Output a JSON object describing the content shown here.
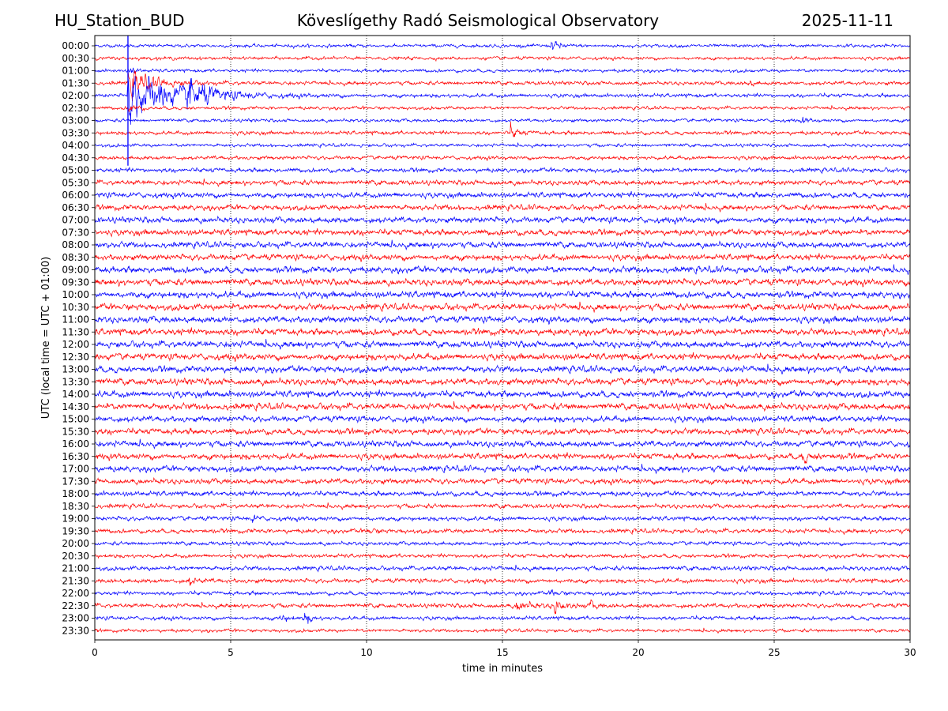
{
  "chart_data": {
    "type": "line",
    "station": "HU_Station_BUD",
    "title": "Köveslígethy Radó Seismological Observatory",
    "date": "2025-11-11",
    "xlabel": "time in minutes",
    "ylabel": "UTC (local time = UTC + 01:00)",
    "xlim": [
      0,
      30
    ],
    "x_ticks": [
      0,
      5,
      10,
      15,
      20,
      25,
      30
    ],
    "grid": "vertical dotted",
    "trace_colors": [
      "#0000ff",
      "#ff0000"
    ],
    "rows": [
      {
        "label": "00:00",
        "noise": 0.3,
        "events": [
          {
            "t": 16.8,
            "amp": 1.0,
            "dur": 0.6
          }
        ]
      },
      {
        "label": "00:30",
        "noise": 0.3,
        "events": []
      },
      {
        "label": "01:00",
        "noise": 0.3,
        "events": [
          {
            "t": 1.3,
            "amp": 1.2,
            "dur": 0.3
          }
        ]
      },
      {
        "label": "01:30",
        "noise": 0.35,
        "events": [
          {
            "t": 1.2,
            "amp": 2.5,
            "dur": 1.8
          },
          {
            "t": 24.0,
            "amp": 0.8,
            "dur": 0.4
          }
        ]
      },
      {
        "label": "02:00",
        "noise": 0.35,
        "events": [
          {
            "t": 1.2,
            "amp": 5.0,
            "dur": 3.5
          },
          {
            "t": 3.4,
            "amp": 3.0,
            "dur": 1.2
          }
        ]
      },
      {
        "label": "02:30",
        "noise": 0.3,
        "events": [
          {
            "t": 1.2,
            "amp": 1.2,
            "dur": 0.5
          }
        ]
      },
      {
        "label": "03:00",
        "noise": 0.3,
        "events": [
          {
            "t": 26.0,
            "amp": 0.7,
            "dur": 0.4
          }
        ]
      },
      {
        "label": "03:30",
        "noise": 0.35,
        "events": [
          {
            "t": 15.3,
            "amp": 1.3,
            "dur": 0.5
          }
        ]
      },
      {
        "label": "04:00",
        "noise": 0.3,
        "events": []
      },
      {
        "label": "04:30",
        "noise": 0.35,
        "events": []
      },
      {
        "label": "05:00",
        "noise": 0.4,
        "events": []
      },
      {
        "label": "05:30",
        "noise": 0.45,
        "events": []
      },
      {
        "label": "06:00",
        "noise": 0.5,
        "events": []
      },
      {
        "label": "06:30",
        "noise": 0.5,
        "events": []
      },
      {
        "label": "07:00",
        "noise": 0.55,
        "events": []
      },
      {
        "label": "07:30",
        "noise": 0.55,
        "events": []
      },
      {
        "label": "08:00",
        "noise": 0.55,
        "events": []
      },
      {
        "label": "08:30",
        "noise": 0.55,
        "events": []
      },
      {
        "label": "09:00",
        "noise": 0.6,
        "events": []
      },
      {
        "label": "09:30",
        "noise": 0.6,
        "events": []
      },
      {
        "label": "10:00",
        "noise": 0.6,
        "events": []
      },
      {
        "label": "10:30",
        "noise": 0.6,
        "events": []
      },
      {
        "label": "11:00",
        "noise": 0.6,
        "events": []
      },
      {
        "label": "11:30",
        "noise": 0.6,
        "events": []
      },
      {
        "label": "12:00",
        "noise": 0.6,
        "events": []
      },
      {
        "label": "12:30",
        "noise": 0.6,
        "events": []
      },
      {
        "label": "13:00",
        "noise": 0.6,
        "events": []
      },
      {
        "label": "13:30",
        "noise": 0.6,
        "events": []
      },
      {
        "label": "14:00",
        "noise": 0.6,
        "events": []
      },
      {
        "label": "14:30",
        "noise": 0.6,
        "events": []
      },
      {
        "label": "15:00",
        "noise": 0.55,
        "events": []
      },
      {
        "label": "15:30",
        "noise": 0.55,
        "events": []
      },
      {
        "label": "16:00",
        "noise": 0.55,
        "events": []
      },
      {
        "label": "16:30",
        "noise": 0.55,
        "events": [
          {
            "t": 26.0,
            "amp": 0.9,
            "dur": 0.8
          }
        ]
      },
      {
        "label": "17:00",
        "noise": 0.55,
        "events": []
      },
      {
        "label": "17:30",
        "noise": 0.5,
        "events": []
      },
      {
        "label": "18:00",
        "noise": 0.45,
        "events": []
      },
      {
        "label": "18:30",
        "noise": 0.4,
        "events": []
      },
      {
        "label": "19:00",
        "noise": 0.4,
        "events": [
          {
            "t": 5.8,
            "amp": 0.9,
            "dur": 0.3
          }
        ]
      },
      {
        "label": "19:30",
        "noise": 0.4,
        "events": [
          {
            "t": 10.0,
            "amp": 0.8,
            "dur": 0.4
          }
        ]
      },
      {
        "label": "20:00",
        "noise": 0.35,
        "events": []
      },
      {
        "label": "20:30",
        "noise": 0.35,
        "events": []
      },
      {
        "label": "21:00",
        "noise": 0.4,
        "events": []
      },
      {
        "label": "21:30",
        "noise": 0.4,
        "events": [
          {
            "t": 3.4,
            "amp": 1.0,
            "dur": 0.5
          }
        ]
      },
      {
        "label": "22:00",
        "noise": 0.35,
        "events": [
          {
            "t": 16.8,
            "amp": 0.8,
            "dur": 0.4
          }
        ]
      },
      {
        "label": "22:30",
        "noise": 0.4,
        "events": [
          {
            "t": 15.5,
            "amp": 1.0,
            "dur": 1.0
          },
          {
            "t": 16.9,
            "amp": 1.5,
            "dur": 0.6
          },
          {
            "t": 18.2,
            "amp": 0.9,
            "dur": 0.4
          }
        ]
      },
      {
        "label": "23:00",
        "noise": 0.35,
        "events": [
          {
            "t": 7.7,
            "amp": 1.3,
            "dur": 0.4
          },
          {
            "t": 6.8,
            "amp": 0.8,
            "dur": 0.5
          }
        ]
      },
      {
        "label": "23:30",
        "noise": 0.3,
        "events": []
      }
    ]
  }
}
